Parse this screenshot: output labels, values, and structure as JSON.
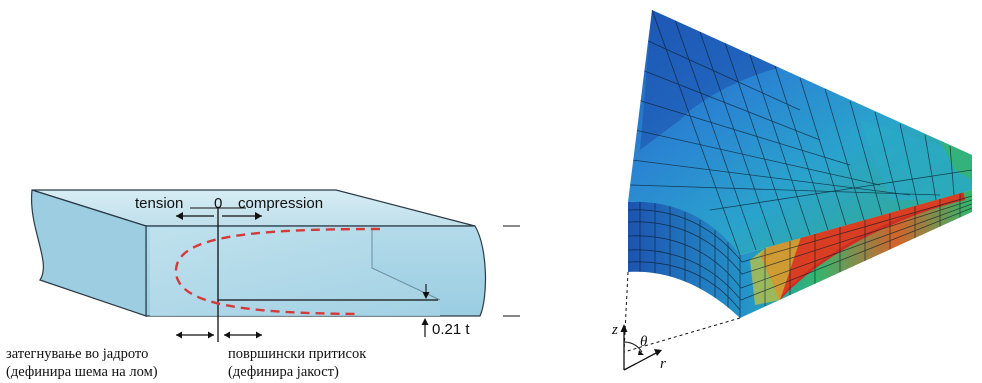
{
  "left": {
    "label_tension": "tension",
    "label_zero": "0",
    "label_compression": "compression",
    "label_t": "t",
    "label_depth": "0.21 t",
    "caption_left_line1": "затегнување во јадрото",
    "caption_left_line2": "(дефинира шема на лом)",
    "caption_right_line1": "површински притисок",
    "caption_right_line2": "(дефинира јакост)",
    "colors": {
      "slab_top": "#c8e4ef",
      "slab_front": "#a9d4e6",
      "slab_side": "#8fc4dc",
      "stress_curve": "#d43a3a"
    }
  },
  "right": {
    "axis_z": "z",
    "axis_theta": "θ",
    "axis_r": "r",
    "colors": {
      "blue_dark": "#1f55b5",
      "blue": "#1f7fd0",
      "cyan": "#25a7c9",
      "green": "#2fb86a",
      "yellow": "#c9c83a",
      "orange": "#e0622d",
      "red": "#cf2d22",
      "mesh": "#0d1b2a"
    }
  }
}
